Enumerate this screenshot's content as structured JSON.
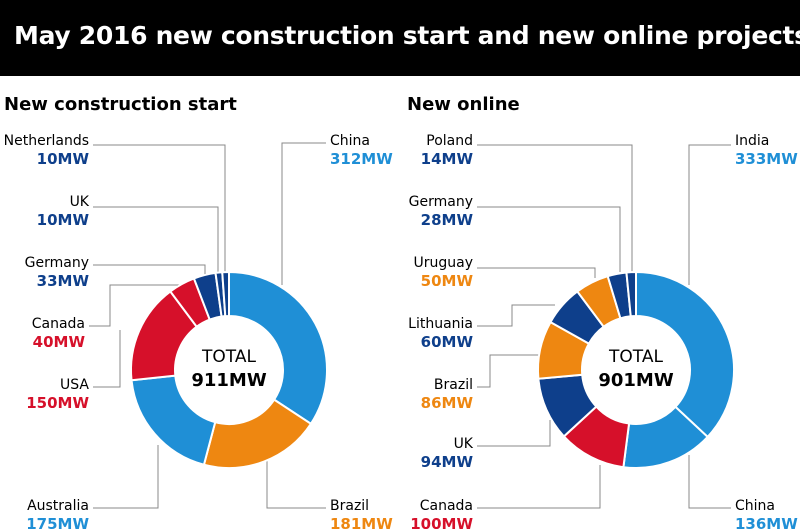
{
  "header": {
    "title": "May 2016 new construction start and new online projects"
  },
  "colors": {
    "lightblue": "#1f8fd6",
    "darkblue": "#0e3f8b",
    "orange": "#ee8711",
    "red": "#d6102a",
    "black": "#000000",
    "leader": "#888888"
  },
  "chart_data": [
    {
      "type": "pie",
      "title": "New construction start",
      "total_label": "TOTAL",
      "total_value": "911MW",
      "slices": [
        {
          "name": "China",
          "value": 312,
          "label": "312MW",
          "color": "#1f8fd6"
        },
        {
          "name": "Brazil",
          "value": 181,
          "label": "181MW",
          "color": "#ee8711"
        },
        {
          "name": "Australia",
          "value": 175,
          "label": "175MW",
          "color": "#1f8fd6"
        },
        {
          "name": "USA",
          "value": 150,
          "label": "150MW",
          "color": "#d6102a"
        },
        {
          "name": "Canada",
          "value": 40,
          "label": "40MW",
          "color": "#d6102a"
        },
        {
          "name": "Germany",
          "value": 33,
          "label": "33MW",
          "color": "#0e3f8b"
        },
        {
          "name": "UK",
          "value": 10,
          "label": "10MW",
          "color": "#0e3f8b"
        },
        {
          "name": "Netherlands",
          "value": 10,
          "label": "10MW",
          "color": "#0e3f8b"
        }
      ]
    },
    {
      "type": "pie",
      "title": "New online",
      "total_label": "TOTAL",
      "total_value": "901MW",
      "slices": [
        {
          "name": "India",
          "value": 333,
          "label": "333MW",
          "color": "#1f8fd6"
        },
        {
          "name": "China",
          "value": 136,
          "label": "136MW",
          "color": "#1f8fd6"
        },
        {
          "name": "Canada",
          "value": 100,
          "label": "100MW",
          "color": "#d6102a"
        },
        {
          "name": "UK",
          "value": 94,
          "label": "94MW",
          "color": "#0e3f8b"
        },
        {
          "name": "Brazil",
          "value": 86,
          "label": "86MW",
          "color": "#ee8711"
        },
        {
          "name": "Lithuania",
          "value": 60,
          "label": "60MW",
          "color": "#0e3f8b"
        },
        {
          "name": "Uruguay",
          "value": 50,
          "label": "50MW",
          "color": "#ee8711"
        },
        {
          "name": "Germany",
          "value": 28,
          "label": "28MW",
          "color": "#0e3f8b"
        },
        {
          "name": "Poland",
          "value": 14,
          "label": "14MW",
          "color": "#0e3f8b"
        }
      ]
    }
  ]
}
